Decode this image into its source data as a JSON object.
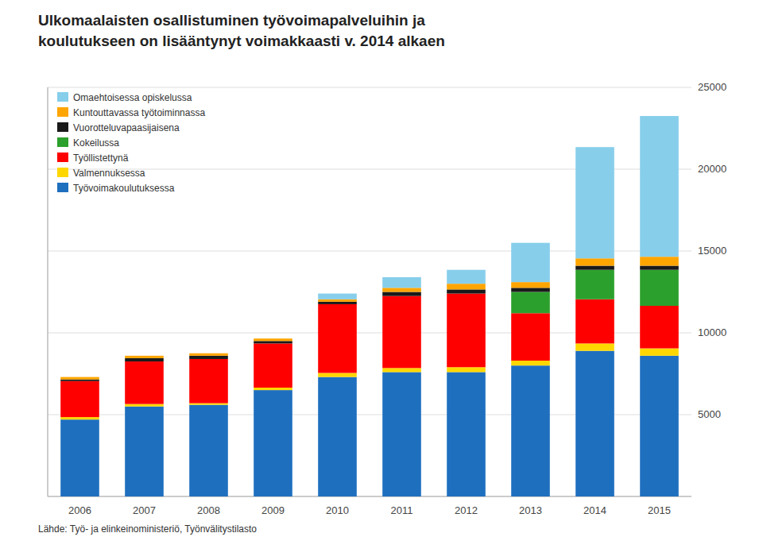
{
  "chart_data": {
    "type": "bar",
    "stacked": true,
    "title": "Ulkomaalaisten osallistuminen työvoimapalveluihin ja",
    "subtitle": "koulutukseen on lisääntynyt voimakkaasti v. 2014 alkaen",
    "annotations": [
      "Lähde: Työ- ja elinkeinoministeriö, Työnvälitystilasto"
    ],
    "categories": [
      "2006",
      "2007",
      "2008",
      "2009",
      "2010",
      "2011",
      "2012",
      "2013",
      "2014",
      "2015"
    ],
    "series": [
      {
        "name": "Työvoimakoulutuksessa",
        "color": "#1F6FBF",
        "values": [
          4700,
          5500,
          5600,
          6500,
          7300,
          7600,
          7600,
          8000,
          8900,
          8600
        ]
      },
      {
        "name": "Valmennuksessa",
        "color": "#FFD700",
        "values": [
          150,
          150,
          100,
          150,
          250,
          250,
          300,
          300,
          450,
          450
        ]
      },
      {
        "name": "Työllistettynä",
        "color": "#FF0000",
        "values": [
          2200,
          2600,
          2700,
          2700,
          4200,
          4400,
          4500,
          2900,
          2700,
          2600
        ]
      },
      {
        "name": "Kokeilussa",
        "color": "#2CA02C",
        "values": [
          0,
          0,
          0,
          0,
          0,
          0,
          0,
          1300,
          1800,
          2200
        ]
      },
      {
        "name": "Vuorotteluvapaasijaisena",
        "color": "#1A1A1A",
        "values": [
          100,
          200,
          200,
          150,
          150,
          250,
          250,
          250,
          250,
          250
        ]
      },
      {
        "name": "Kuntouttavassa työtoiminnassa",
        "color": "#FFA500",
        "values": [
          150,
          150,
          150,
          150,
          150,
          250,
          350,
          350,
          450,
          550
        ]
      },
      {
        "name": "Omaehtoisessa opiskelussa",
        "color": "#87CEEB",
        "values": [
          0,
          0,
          0,
          0,
          350,
          650,
          850,
          2400,
          6800,
          8600
        ]
      }
    ],
    "ylim": [
      0,
      25000
    ],
    "yticks": [
      5000,
      10000,
      15000,
      20000,
      25000
    ],
    "grid": true,
    "legend": "upper left"
  }
}
